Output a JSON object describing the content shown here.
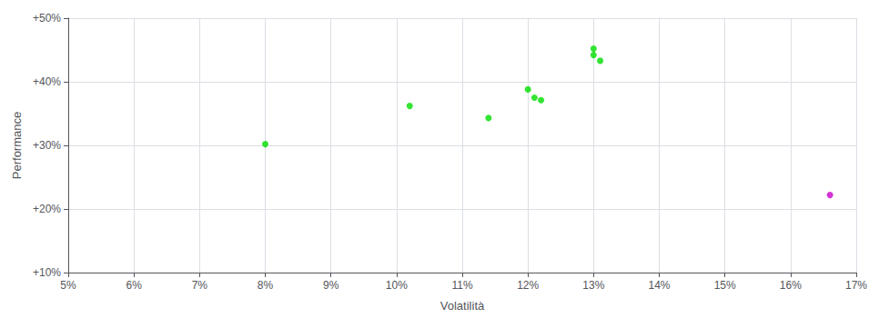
{
  "chart_data": {
    "type": "scatter",
    "xlabel": "Volatilità",
    "ylabel": "Performance",
    "xlim": [
      0.05,
      0.17
    ],
    "ylim": [
      0.1,
      0.5
    ],
    "xticks": [
      {
        "value": 0.05,
        "label": "5%"
      },
      {
        "value": 0.06,
        "label": "6%"
      },
      {
        "value": 0.07,
        "label": "7%"
      },
      {
        "value": 0.08,
        "label": "8%"
      },
      {
        "value": 0.09,
        "label": "9%"
      },
      {
        "value": 0.1,
        "label": "10%"
      },
      {
        "value": 0.11,
        "label": "11%"
      },
      {
        "value": 0.12,
        "label": "12%"
      },
      {
        "value": 0.13,
        "label": "13%"
      },
      {
        "value": 0.14,
        "label": "14%"
      },
      {
        "value": 0.15,
        "label": "15%"
      },
      {
        "value": 0.16,
        "label": "16%"
      },
      {
        "value": 0.17,
        "label": "17%"
      }
    ],
    "yticks": [
      {
        "value": 0.1,
        "label": "+10%"
      },
      {
        "value": 0.2,
        "label": "+20%"
      },
      {
        "value": 0.3,
        "label": "+30%"
      },
      {
        "value": 0.4,
        "label": "+40%"
      },
      {
        "value": 0.5,
        "label": "+50%"
      }
    ],
    "grid": true,
    "series": [
      {
        "color": "#00dd00",
        "x": [
          0.08,
          0.102,
          0.114,
          0.12,
          0.121,
          0.122,
          0.13,
          0.13,
          0.131
        ],
        "values": [
          0.302,
          0.362,
          0.343,
          0.388,
          0.375,
          0.371,
          0.452,
          0.442,
          0.433
        ]
      },
      {
        "color": "#cc00cc",
        "x": [
          0.166
        ],
        "values": [
          0.222
        ]
      }
    ]
  }
}
